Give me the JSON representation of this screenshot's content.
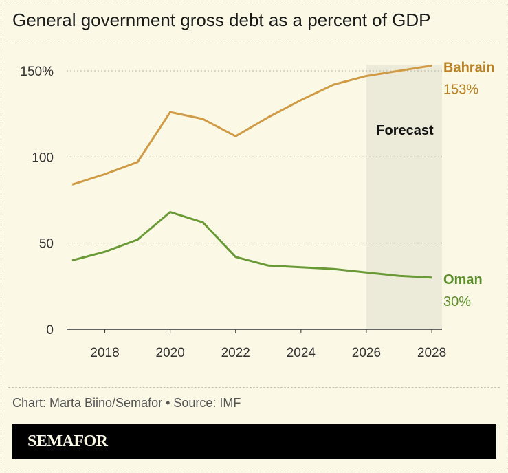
{
  "title": "General government gross debt as a percent of GDP",
  "credit": "Chart: Marta Biino/Semafor • Source: IMF",
  "logo": "SEMAFOR",
  "chart_data": {
    "type": "line",
    "title": "General government gross debt as a percent of GDP",
    "x": [
      2017,
      2018,
      2019,
      2020,
      2021,
      2022,
      2023,
      2024,
      2025,
      2026,
      2027,
      2028
    ],
    "xlim": [
      2017,
      2028.3
    ],
    "ylim": [
      0,
      160
    ],
    "x_ticks": [
      "2018",
      "2020",
      "2022",
      "2024",
      "2026",
      "2028"
    ],
    "y_ticks": [
      {
        "v": 0,
        "label": "0"
      },
      {
        "v": 50,
        "label": "50"
      },
      {
        "v": 100,
        "label": "100"
      },
      {
        "v": 150,
        "label": "150%"
      }
    ],
    "grid": "horizontal dotted",
    "forecast": {
      "label": "Forecast",
      "from": 2026,
      "color": "#ecead8"
    },
    "series": [
      {
        "name": "Bahrain",
        "end_label": "153%",
        "color": "#d19a45",
        "label_color": "#b98125",
        "values": [
          84,
          90,
          97,
          126,
          122,
          112,
          123,
          133,
          142,
          147,
          150,
          153
        ]
      },
      {
        "name": "Oman",
        "end_label": "30%",
        "color": "#6a9a35",
        "label_color": "#5d8e2c",
        "values": [
          40,
          45,
          52,
          68,
          62,
          42,
          37,
          36,
          35,
          33,
          31,
          30
        ]
      }
    ]
  }
}
